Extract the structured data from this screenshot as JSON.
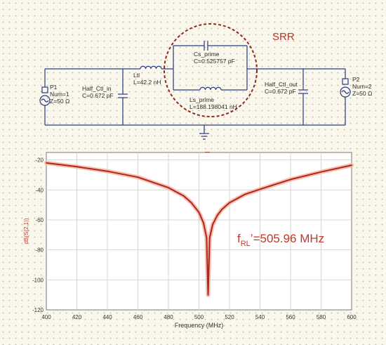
{
  "schematic": {
    "srr_label": "SRR",
    "p1": {
      "name": "P1",
      "num": "Num=1",
      "z": "Z=50 Ω"
    },
    "p2": {
      "name": "P2",
      "num": "Num=2",
      "z": "Z=50 Ω"
    },
    "half_ctl_in": {
      "name": "Half_Ctl_in",
      "value": "C=0.672 pF"
    },
    "ltl": {
      "name": "Ltl",
      "value": "L=42.2 nH"
    },
    "cs_prime": {
      "name": "Cs_prime",
      "value": "C=0.525757 pF"
    },
    "ls_prime": {
      "name": "Ls_prime",
      "value": "L=188.198041 nH"
    },
    "half_ctl_out": {
      "name": "Half_Ctl_out",
      "value": "C=0.672 pF"
    }
  },
  "colors": {
    "wire": "#2a3a86",
    "srr_circle": "#8e2a1d",
    "srr_text": "#b23a2a",
    "curve": "#b1261a",
    "curve_glow": "#f4b8a8",
    "arrow": "#c8341c",
    "grid": "#d4d4d4",
    "ylabel": "#c0392b"
  },
  "chart_data": {
    "type": "line",
    "xlabel": "Frequency (MHz)",
    "ylabel": "dB(S(2,1))",
    "xlim": [
      400,
      600
    ],
    "ylim": [
      -120,
      -15
    ],
    "xticks": [
      400,
      420,
      440,
      460,
      480,
      500,
      520,
      540,
      560,
      580,
      600
    ],
    "yticks": [
      -20,
      -40,
      -60,
      -80,
      -100,
      -120
    ],
    "grid": true,
    "series": [
      {
        "x": [
          400,
          420,
          440,
          460,
          480,
          490,
          495,
          500,
          503,
          505,
          505.96,
          507,
          509,
          512,
          515,
          520,
          530,
          540,
          560,
          580,
          600
        ],
        "y": [
          -22,
          -24.5,
          -27.5,
          -31.5,
          -38.5,
          -44,
          -48.5,
          -55,
          -62,
          -72,
          -110,
          -72,
          -63,
          -57,
          -53,
          -48.5,
          -43,
          -39.5,
          -33,
          -28,
          -23.5
        ]
      }
    ],
    "annotation": {
      "base": "f",
      "sub": "RL",
      "suffix": "’=505.96 MHz"
    }
  }
}
